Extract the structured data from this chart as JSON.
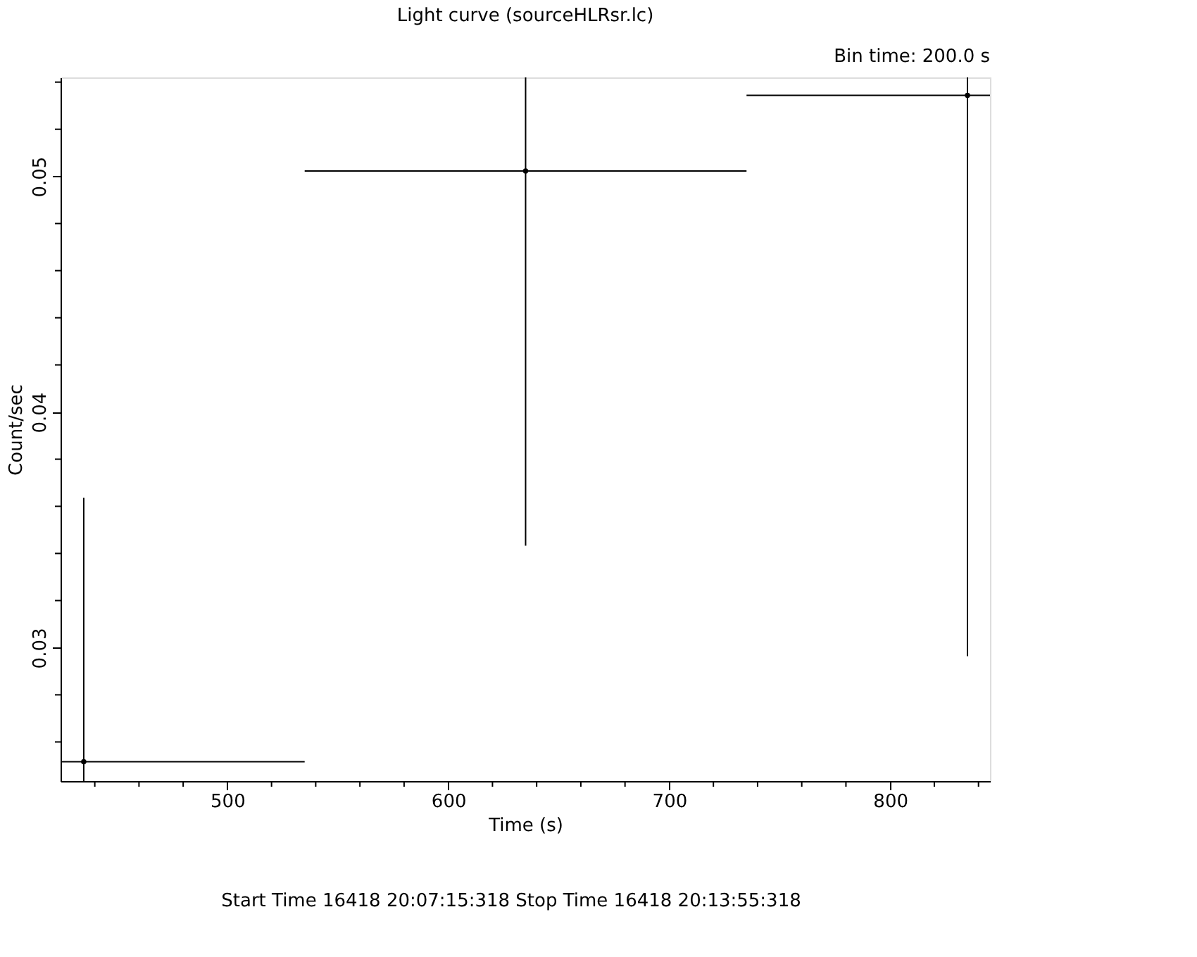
{
  "chart_data": {
    "type": "scatter",
    "title": "Light curve (sourceHLRsr.lc)",
    "xlabel": "Time (s)",
    "ylabel": "Count/sec",
    "annotations": [
      "Bin time:    200.0     s",
      "Start Time 16418 20:07:15:318     Stop Time 16418 20:13:55:318"
    ],
    "x": [
      435,
      635,
      835
    ],
    "series": [
      {
        "color": "#000000",
        "values": [
          0.02516,
          0.05023,
          0.05344
        ],
        "errors": [
          0.0112,
          0.0159,
          0.0238
        ],
        "xerrors": [
          100,
          100,
          100
        ]
      }
    ],
    "xlim": [
      424.5,
      845.2
    ],
    "ylim": [
      0.02434,
      0.0542
    ],
    "xticks": [
      {
        "value": 440,
        "label": null
      },
      {
        "value": 460,
        "label": null
      },
      {
        "value": 480,
        "label": null
      },
      500,
      {
        "value": 520,
        "label": null
      },
      {
        "value": 540,
        "label": null
      },
      {
        "value": 560,
        "label": null
      },
      {
        "value": 580,
        "label": null
      },
      600,
      {
        "value": 620,
        "label": null
      },
      {
        "value": 640,
        "label": null
      },
      {
        "value": 660,
        "label": null
      },
      {
        "value": 680,
        "label": null
      },
      700,
      {
        "value": 720,
        "label": null
      },
      {
        "value": 740,
        "label": null
      },
      {
        "value": 760,
        "label": null
      },
      {
        "value": 780,
        "label": null
      },
      800,
      {
        "value": 820,
        "label": null
      },
      {
        "value": 840,
        "label": null
      }
    ],
    "yticks": [
      {
        "value": 0.026,
        "label": null
      },
      {
        "value": 0.028,
        "label": null
      },
      {
        "value": 0.03,
        "label": "0.03"
      },
      {
        "value": 0.032,
        "label": null
      },
      {
        "value": 0.034,
        "label": null
      },
      {
        "value": 0.036,
        "label": null
      },
      {
        "value": 0.038,
        "label": null
      },
      {
        "value": 0.04,
        "label": "0.04"
      },
      {
        "value": 0.042,
        "label": null
      },
      {
        "value": 0.044,
        "label": null
      },
      {
        "value": 0.046,
        "label": null
      },
      {
        "value": 0.048,
        "label": null
      },
      {
        "value": 0.05,
        "label": "0.05"
      },
      {
        "value": 0.052,
        "label": null
      },
      {
        "value": 0.054,
        "label": null
      }
    ],
    "grid": false
  }
}
